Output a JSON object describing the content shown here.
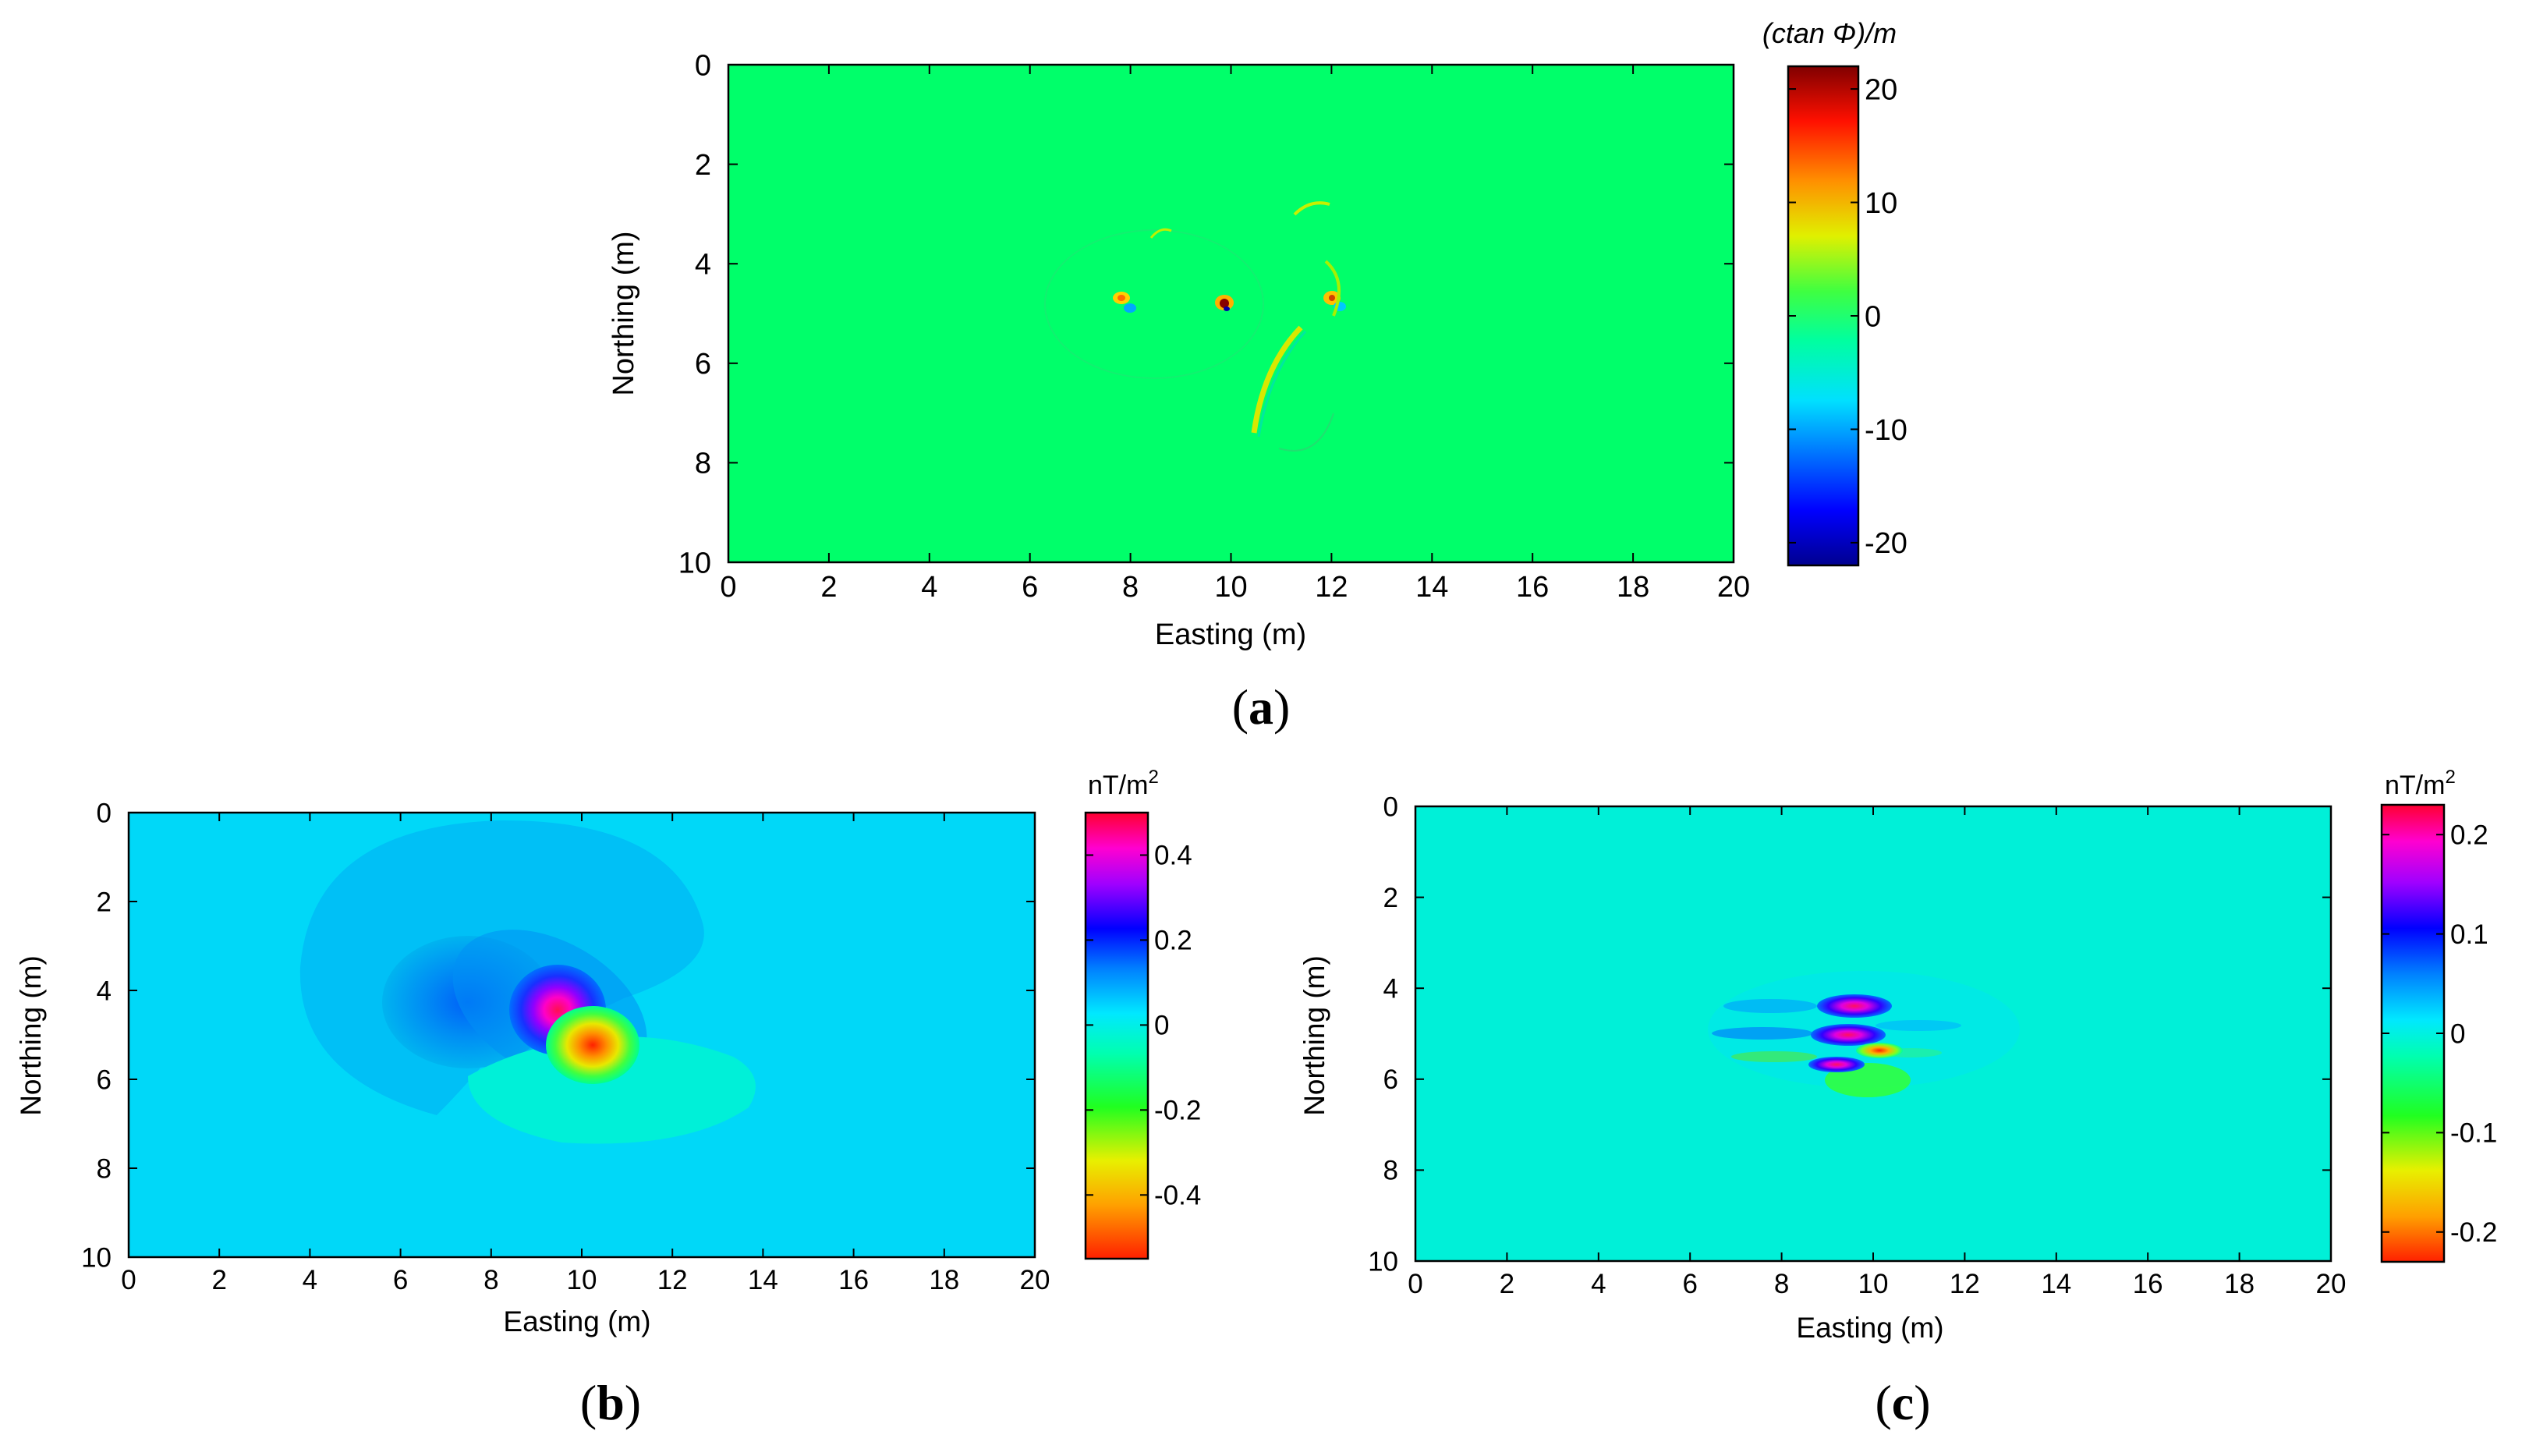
{
  "chart_data": [
    {
      "id": "a",
      "type": "heatmap",
      "panel_label": "a",
      "xlabel": "Easting (m)",
      "ylabel": "Northing (m)",
      "xlim": [
        0,
        20
      ],
      "ylim": [
        0,
        10
      ],
      "y_inverted": true,
      "xticks": [
        0,
        2,
        4,
        6,
        8,
        10,
        12,
        14,
        16,
        18,
        20
      ],
      "yticks": [
        0,
        2,
        4,
        6,
        8,
        10
      ],
      "colorbar": {
        "unit": "(ctan Φ)/m",
        "range": [
          -22,
          22
        ],
        "ticks": [
          20,
          10,
          0,
          -10,
          -20
        ],
        "colormap": "jet"
      },
      "background_value": 0,
      "features": [
        {
          "kind": "dipole",
          "x": 7.9,
          "y": 4.8,
          "amplitude": 12
        },
        {
          "kind": "dipole",
          "x": 9.9,
          "y": 4.9,
          "amplitude": 22
        },
        {
          "kind": "dipole",
          "x": 12.0,
          "y": 4.8,
          "amplitude": 10
        },
        {
          "kind": "arc",
          "x": 10.8,
          "y": 6.4,
          "amplitude": 6
        },
        {
          "kind": "arc",
          "x": 11.5,
          "y": 3.2,
          "amplitude": 3
        }
      ]
    },
    {
      "id": "b",
      "type": "heatmap",
      "panel_label": "b",
      "xlabel": "Easting (m)",
      "ylabel": "Northing (m)",
      "xlim": [
        0,
        20
      ],
      "ylim": [
        0,
        10
      ],
      "y_inverted": true,
      "xticks": [
        0,
        2,
        4,
        6,
        8,
        10,
        12,
        14,
        16,
        18,
        20
      ],
      "yticks": [
        0,
        2,
        4,
        6,
        8,
        10
      ],
      "colorbar": {
        "unit": "nT/m",
        "unit_superscript": "2",
        "range": [
          -0.55,
          0.5
        ],
        "ticks": [
          0.4,
          0.2,
          0,
          -0.2,
          -0.4
        ],
        "colormap": "hsv"
      },
      "background_value": 0,
      "features": [
        {
          "kind": "positive_peak",
          "x": 9.5,
          "y": 4.6,
          "value": 0.45
        },
        {
          "kind": "negative_peak",
          "x": 10.2,
          "y": 5.3,
          "value": -0.5
        },
        {
          "kind": "positive_halo",
          "x": 7.4,
          "y": 4.3,
          "value": 0.08
        },
        {
          "kind": "negative_lobe",
          "x": 11.5,
          "y": 6.2,
          "value": -0.06
        }
      ]
    },
    {
      "id": "c",
      "type": "heatmap",
      "panel_label": "c",
      "xlabel": "Easting (m)",
      "ylabel": "Northing (m)",
      "xlim": [
        0,
        20
      ],
      "ylim": [
        0,
        10
      ],
      "y_inverted": true,
      "xticks": [
        0,
        2,
        4,
        6,
        8,
        10,
        12,
        14,
        16,
        18,
        20
      ],
      "yticks": [
        0,
        2,
        4,
        6,
        8,
        10
      ],
      "colorbar": {
        "unit": "nT/m",
        "unit_superscript": "2",
        "range": [
          -0.23,
          0.23
        ],
        "ticks": [
          0.2,
          0.1,
          0,
          -0.1,
          -0.2
        ],
        "colormap": "hsv"
      },
      "background_value": 0,
      "features": [
        {
          "kind": "positive_peak",
          "x": 9.7,
          "y": 4.5,
          "value": 0.2
        },
        {
          "kind": "positive_peak",
          "x": 9.6,
          "y": 5.05,
          "value": 0.22
        },
        {
          "kind": "negative_peak",
          "x": 10.2,
          "y": 5.4,
          "value": -0.23
        },
        {
          "kind": "positive_peak",
          "x": 9.4,
          "y": 5.7,
          "value": 0.12
        },
        {
          "kind": "negative_lobe",
          "x": 10.0,
          "y": 6.0,
          "value": -0.08
        }
      ]
    }
  ]
}
